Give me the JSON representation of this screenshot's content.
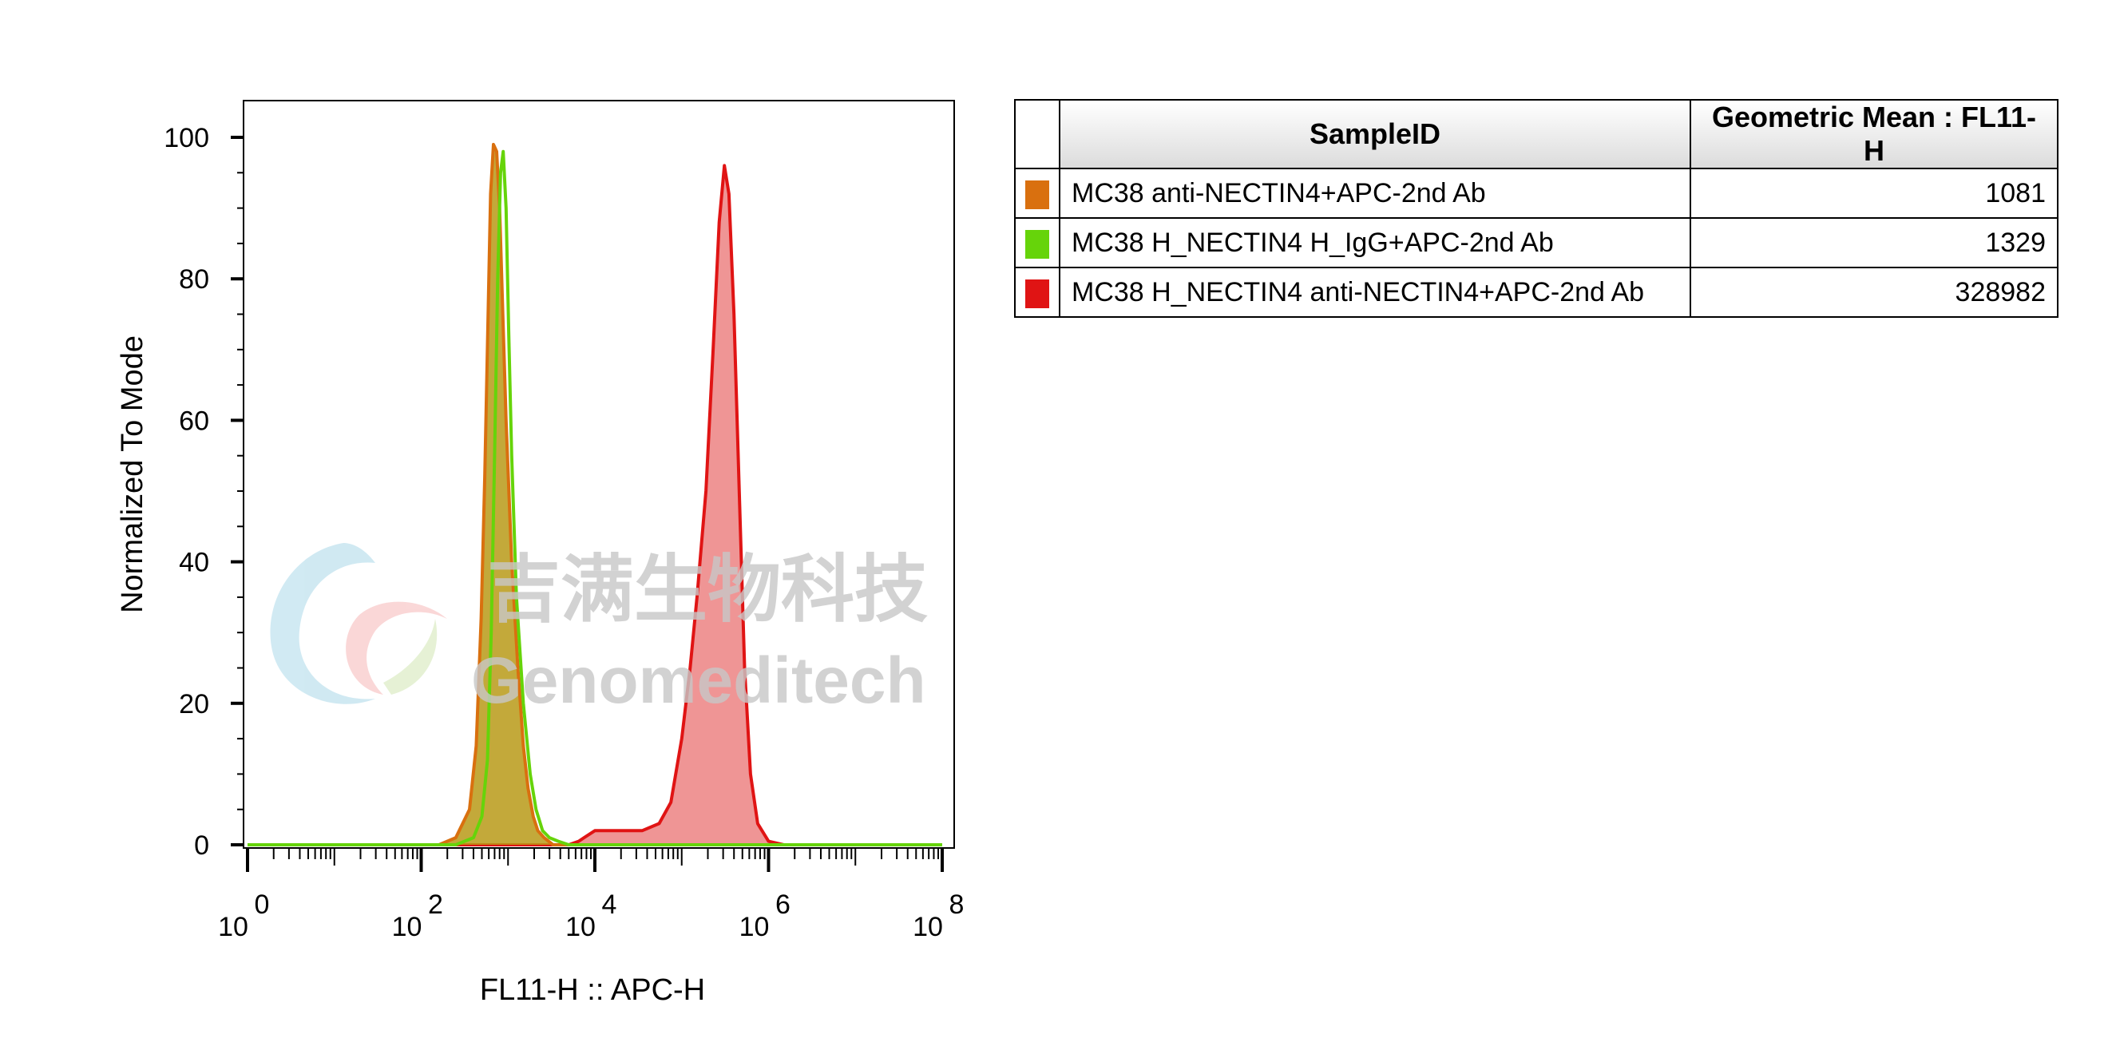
{
  "chart_data": {
    "type": "area",
    "xlabel": "FL11-H :: APC-H",
    "ylabel": "Normalized To Mode",
    "xscale": "log",
    "xlim": [
      1,
      100000000
    ],
    "ylim": [
      0,
      105
    ],
    "x_ticks": [
      {
        "base": "10",
        "exp": "0",
        "value": 1
      },
      {
        "base": "10",
        "exp": "2",
        "value": 100
      },
      {
        "base": "10",
        "exp": "4",
        "value": 10000
      },
      {
        "base": "10",
        "exp": "6",
        "value": 1000000
      },
      {
        "base": "10",
        "exp": "8",
        "value": 100000000
      }
    ],
    "y_ticks": [
      "0",
      "20",
      "40",
      "60",
      "80",
      "100"
    ],
    "series": [
      {
        "name": "MC38 anti-NECTIN4+APC-2nd Ab",
        "color": "#d9700f",
        "fill": "#b89a17",
        "x": [
          1,
          160,
          250,
          360,
          430,
          490,
          540,
          590,
          630,
          680,
          740,
          800,
          870,
          950,
          1100,
          1300,
          1500,
          1700,
          1950,
          2200,
          2600,
          3300,
          5000,
          100000000
        ],
        "y": [
          0,
          0,
          1,
          5,
          14,
          32,
          52,
          75,
          92,
          99,
          98,
          90,
          75,
          60,
          40,
          25,
          14,
          8,
          4,
          2,
          1,
          0,
          0,
          0
        ]
      },
      {
        "name": "MC38 H_NECTIN4 H_IgG+APC-2nd Ab",
        "color": "#66d40a",
        "fill": "none",
        "x": [
          1,
          250,
          400,
          500,
          580,
          640,
          700,
          760,
          820,
          880,
          950,
          1020,
          1100,
          1250,
          1500,
          1800,
          2100,
          2500,
          3000,
          3800,
          5000,
          100000000
        ],
        "y": [
          0,
          0,
          1,
          4,
          12,
          30,
          55,
          80,
          95,
          98,
          90,
          72,
          55,
          35,
          20,
          10,
          5,
          2,
          1,
          0.5,
          0,
          0
        ]
      },
      {
        "name": "MC38 H_NECTIN4 anti-NECTIN4+APC-2nd Ab",
        "color": "#e01414",
        "fill": "#ee8f8f",
        "x": [
          1,
          5000,
          6500,
          7500,
          10000,
          13000,
          20000,
          35000,
          55000,
          75000,
          100000,
          125000,
          150000,
          190000,
          230000,
          270000,
          310000,
          350000,
          400000,
          460000,
          530000,
          620000,
          750000,
          1000000,
          1500000,
          100000000
        ],
        "y": [
          0,
          0,
          0.5,
          1,
          2,
          2,
          2,
          2,
          3,
          6,
          15,
          25,
          35,
          50,
          70,
          88,
          96,
          92,
          75,
          50,
          25,
          10,
          3,
          0.5,
          0,
          0
        ]
      }
    ]
  },
  "table": {
    "headers": [
      "SampleID",
      "Geometric Mean : FL11-H"
    ],
    "rows": [
      {
        "color": "#d9700f",
        "sample": "MC38 anti-NECTIN4+APC-2nd Ab",
        "value": "1081"
      },
      {
        "color": "#66d40a",
        "sample": "MC38 H_NECTIN4 H_IgG+APC-2nd Ab",
        "value": "1329"
      },
      {
        "color": "#e01414",
        "sample": "MC38 H_NECTIN4 anti-NECTIN4+APC-2nd Ab",
        "value": "328982"
      }
    ]
  },
  "watermark": {
    "cn": "吉满生物科技",
    "en": "Genomeditech"
  }
}
